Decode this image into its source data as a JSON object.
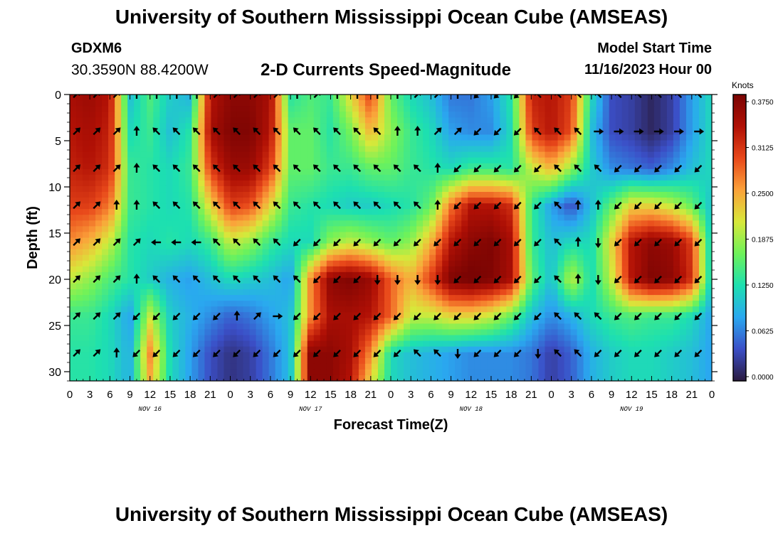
{
  "header": {
    "title": "University of Southern Mississippi Ocean Cube (AMSEAS)",
    "station": "GDXM6",
    "coords": "30.3590N  88.4200W",
    "subtitle": "2-D Currents Speed-Magnitude",
    "model_start_label": "Model Start Time",
    "model_start_value": "11/16/2023 Hour 00"
  },
  "footer": {
    "title": "University of Southern Mississippi Ocean Cube (AMSEAS)"
  },
  "chart_data": {
    "type": "heatmap",
    "title": "2-D Currents Speed-Magnitude",
    "xlabel": "Forecast Time(Z)",
    "ylabel": "Depth (ft)",
    "xlim": [
      0,
      96
    ],
    "ylim": [
      0,
      31
    ],
    "x_ticks": [
      "0",
      "3",
      "6",
      "9",
      "12",
      "15",
      "18",
      "21",
      "0",
      "3",
      "6",
      "9",
      "12",
      "15",
      "18",
      "21",
      "0",
      "3",
      "6",
      "9",
      "12",
      "15",
      "18",
      "21",
      "0",
      "3",
      "6",
      "9",
      "12",
      "15",
      "18",
      "21",
      "0"
    ],
    "day_labels": [
      "NOV 16",
      "NOV 17",
      "NOV 18",
      "NOV 19"
    ],
    "y_ticks": [
      "0",
      "5",
      "10",
      "15",
      "20",
      "25",
      "30"
    ],
    "colorbar": {
      "unit": "Knots",
      "min": 0.0,
      "max": 0.375,
      "ticks": [
        "0.3750",
        "0.3125",
        "0.2500",
        "0.1875",
        "0.1250",
        "0.0625",
        "0.0000"
      ],
      "colors": [
        "#2a1a3f",
        "#3b4fc7",
        "#2aa8f0",
        "#1de0b0",
        "#6ef25a",
        "#d8e83a",
        "#fba23a",
        "#e8481a",
        "#b01005",
        "#7a0403"
      ]
    },
    "speed_grid": {
      "x_hours": [
        0,
        3,
        6,
        9,
        12,
        15,
        18,
        21,
        24,
        27,
        30,
        33,
        36,
        39,
        42,
        45,
        48,
        51,
        54,
        57,
        60,
        63,
        66,
        69,
        72,
        75,
        78,
        81,
        84,
        87,
        90,
        93,
        96
      ],
      "depth_ft": [
        0,
        4,
        8,
        12,
        16,
        20,
        24,
        28,
        31
      ],
      "values_knots": [
        [
          0.34,
          0.35,
          0.33,
          0.1,
          0.15,
          0.11,
          0.09,
          0.33,
          0.36,
          0.36,
          0.34,
          0.13,
          0.15,
          0.14,
          0.22,
          0.3,
          0.16,
          0.12,
          0.1,
          0.06,
          0.06,
          0.08,
          0.13,
          0.32,
          0.33,
          0.3,
          0.12,
          0.04,
          0.03,
          0.01,
          0.03,
          0.08,
          0.12
        ],
        [
          0.33,
          0.34,
          0.32,
          0.12,
          0.14,
          0.1,
          0.13,
          0.34,
          0.37,
          0.37,
          0.33,
          0.16,
          0.16,
          0.13,
          0.17,
          0.24,
          0.18,
          0.14,
          0.12,
          0.08,
          0.07,
          0.07,
          0.12,
          0.3,
          0.33,
          0.29,
          0.1,
          0.04,
          0.03,
          0.01,
          0.03,
          0.08,
          0.12
        ],
        [
          0.32,
          0.33,
          0.31,
          0.14,
          0.13,
          0.12,
          0.14,
          0.3,
          0.35,
          0.35,
          0.3,
          0.16,
          0.16,
          0.14,
          0.14,
          0.16,
          0.16,
          0.14,
          0.13,
          0.12,
          0.14,
          0.14,
          0.13,
          0.2,
          0.24,
          0.18,
          0.11,
          0.07,
          0.06,
          0.05,
          0.07,
          0.1,
          0.12
        ],
        [
          0.3,
          0.3,
          0.27,
          0.14,
          0.13,
          0.12,
          0.13,
          0.22,
          0.3,
          0.29,
          0.22,
          0.14,
          0.13,
          0.12,
          0.11,
          0.11,
          0.12,
          0.13,
          0.16,
          0.27,
          0.33,
          0.33,
          0.31,
          0.14,
          0.08,
          0.04,
          0.1,
          0.16,
          0.22,
          0.22,
          0.2,
          0.16,
          0.1
        ],
        [
          0.26,
          0.24,
          0.2,
          0.13,
          0.12,
          0.13,
          0.12,
          0.14,
          0.2,
          0.18,
          0.14,
          0.12,
          0.12,
          0.18,
          0.2,
          0.18,
          0.16,
          0.18,
          0.24,
          0.33,
          0.36,
          0.37,
          0.34,
          0.14,
          0.1,
          0.12,
          0.12,
          0.22,
          0.33,
          0.36,
          0.35,
          0.3,
          0.1
        ],
        [
          0.2,
          0.18,
          0.15,
          0.13,
          0.11,
          0.09,
          0.08,
          0.1,
          0.12,
          0.11,
          0.1,
          0.08,
          0.26,
          0.36,
          0.37,
          0.35,
          0.28,
          0.24,
          0.3,
          0.37,
          0.38,
          0.37,
          0.34,
          0.16,
          0.1,
          0.2,
          0.12,
          0.2,
          0.33,
          0.37,
          0.36,
          0.31,
          0.1
        ],
        [
          0.14,
          0.14,
          0.12,
          0.08,
          0.2,
          0.11,
          0.09,
          0.07,
          0.05,
          0.06,
          0.08,
          0.1,
          0.26,
          0.34,
          0.34,
          0.33,
          0.28,
          0.2,
          0.2,
          0.22,
          0.22,
          0.2,
          0.16,
          0.1,
          0.07,
          0.09,
          0.12,
          0.14,
          0.15,
          0.14,
          0.14,
          0.12,
          0.08
        ],
        [
          0.13,
          0.13,
          0.12,
          0.09,
          0.26,
          0.12,
          0.08,
          0.04,
          0.02,
          0.03,
          0.06,
          0.1,
          0.36,
          0.36,
          0.34,
          0.26,
          0.12,
          0.1,
          0.09,
          0.08,
          0.07,
          0.07,
          0.07,
          0.06,
          0.03,
          0.05,
          0.09,
          0.11,
          0.12,
          0.12,
          0.11,
          0.1,
          0.08
        ],
        [
          0.13,
          0.13,
          0.12,
          0.09,
          0.24,
          0.12,
          0.08,
          0.04,
          0.02,
          0.03,
          0.06,
          0.1,
          0.36,
          0.36,
          0.33,
          0.22,
          0.12,
          0.1,
          0.09,
          0.08,
          0.07,
          0.07,
          0.07,
          0.06,
          0.03,
          0.05,
          0.09,
          0.11,
          0.12,
          0.12,
          0.11,
          0.1,
          0.08
        ]
      ]
    },
    "vector_grid": {
      "x_hours": [
        1,
        4,
        7,
        10,
        13,
        16,
        19,
        22,
        25,
        28,
        31,
        34,
        37,
        40,
        43,
        46,
        49,
        52,
        55,
        58,
        61,
        64,
        67,
        70,
        73,
        76,
        79,
        82,
        85,
        88,
        91,
        94,
        97
      ],
      "depth_ft": [
        0,
        4,
        8,
        12,
        16,
        20,
        24,
        28
      ],
      "direction_deg": [
        [
          225,
          225,
          225,
          180,
          180,
          180,
          180,
          225,
          225,
          225,
          225,
          180,
          225,
          180,
          180,
          180,
          180,
          225,
          225,
          180,
          45,
          45,
          45,
          135,
          135,
          135,
          135,
          135,
          135,
          135,
          135,
          135,
          135
        ],
        [
          225,
          225,
          225,
          180,
          135,
          135,
          135,
          135,
          135,
          135,
          135,
          135,
          135,
          135,
          135,
          135,
          180,
          180,
          225,
          225,
          45,
          45,
          45,
          135,
          135,
          135,
          270,
          270,
          270,
          270,
          270,
          270,
          225
        ],
        [
          225,
          225,
          225,
          180,
          135,
          135,
          135,
          135,
          135,
          135,
          135,
          135,
          135,
          135,
          135,
          135,
          135,
          135,
          180,
          45,
          45,
          45,
          45,
          45,
          135,
          135,
          135,
          45,
          45,
          45,
          45,
          45,
          90
        ],
        [
          225,
          225,
          180,
          180,
          135,
          135,
          135,
          135,
          135,
          135,
          135,
          135,
          135,
          135,
          135,
          135,
          135,
          135,
          180,
          45,
          45,
          45,
          45,
          45,
          135,
          180,
          180,
          45,
          45,
          45,
          45,
          45,
          45
        ],
        [
          225,
          225,
          225,
          225,
          90,
          90,
          90,
          135,
          135,
          135,
          135,
          45,
          45,
          45,
          45,
          45,
          45,
          45,
          45,
          45,
          45,
          45,
          45,
          45,
          135,
          180,
          0,
          45,
          45,
          45,
          45,
          45,
          0
        ],
        [
          225,
          225,
          225,
          180,
          135,
          135,
          135,
          135,
          135,
          135,
          135,
          135,
          45,
          45,
          45,
          0,
          0,
          0,
          0,
          45,
          45,
          45,
          45,
          45,
          135,
          180,
          0,
          45,
          45,
          45,
          45,
          45,
          0
        ],
        [
          225,
          225,
          225,
          45,
          45,
          45,
          45,
          45,
          180,
          225,
          270,
          45,
          45,
          45,
          45,
          45,
          45,
          45,
          45,
          45,
          45,
          45,
          45,
          45,
          135,
          135,
          135,
          45,
          45,
          45,
          45,
          45,
          45
        ],
        [
          225,
          225,
          180,
          45,
          45,
          45,
          45,
          45,
          45,
          45,
          45,
          45,
          45,
          45,
          45,
          45,
          45,
          135,
          135,
          0,
          45,
          45,
          45,
          0,
          135,
          135,
          45,
          45,
          45,
          45,
          45,
          45,
          135
        ]
      ]
    }
  }
}
